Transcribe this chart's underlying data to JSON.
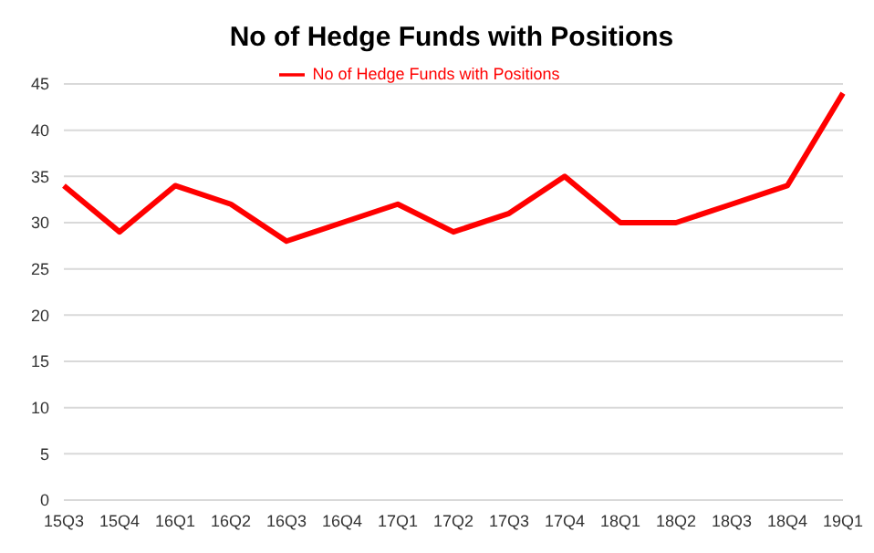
{
  "chart_data": {
    "type": "line",
    "title": "No of Hedge Funds with Positions",
    "categories": [
      "15Q3",
      "15Q4",
      "16Q1",
      "16Q2",
      "16Q3",
      "16Q4",
      "17Q1",
      "17Q2",
      "17Q3",
      "17Q4",
      "18Q1",
      "18Q2",
      "18Q3",
      "18Q4",
      "19Q1"
    ],
    "series": [
      {
        "name": "No of Hedge Funds with Positions",
        "color": "#ff0000",
        "values": [
          34,
          29,
          34,
          32,
          28,
          30,
          32,
          29,
          31,
          35,
          30,
          30,
          32,
          34,
          44
        ]
      }
    ],
    "ylim": [
      0,
      45
    ],
    "yticks": [
      0,
      5,
      10,
      15,
      20,
      25,
      30,
      35,
      40,
      45
    ],
    "grid": "y",
    "legend": "top",
    "marker": "none",
    "line_style": "solid"
  }
}
